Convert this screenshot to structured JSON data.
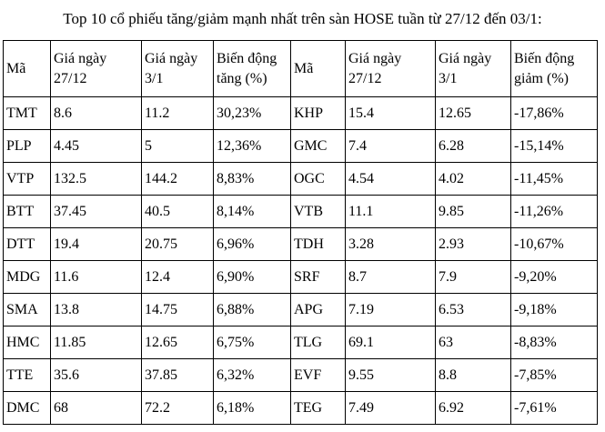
{
  "title": "Top 10 cổ phiếu tăng/giảm mạnh nhất trên sàn HOSE tuần từ 27/12 đến 03/1:",
  "table": {
    "headers": [
      "Mã",
      "Giá ngày 27/12",
      "Giá ngày 3/1",
      "Biến động tăng (%)",
      "Mã",
      "Giá ngày 27/12",
      "Giá ngày 3/1",
      "Biến động giảm (%)"
    ],
    "column_names": [
      "gainer-ticker",
      "gainer-price-2712",
      "gainer-price-0301",
      "gainer-change-pct",
      "loser-ticker",
      "loser-price-2712",
      "loser-price-0301",
      "loser-change-pct"
    ],
    "rows": [
      [
        "TMT",
        "8.6",
        "11.2",
        "30,23%",
        "KHP",
        "15.4",
        "12.65",
        "-17,86%"
      ],
      [
        "PLP",
        "4.45",
        "5",
        "12,36%",
        "GMC",
        "7.4",
        "6.28",
        "-15,14%"
      ],
      [
        "VTP",
        "132.5",
        "144.2",
        "8,83%",
        "OGC",
        "4.54",
        "4.02",
        "-11,45%"
      ],
      [
        "BTT",
        "37.45",
        "40.5",
        "8,14%",
        "VTB",
        "11.1",
        "9.85",
        "-11,26%"
      ],
      [
        "DTT",
        "19.4",
        "20.75",
        "6,96%",
        "TDH",
        "3.28",
        "2.93",
        "-10,67%"
      ],
      [
        "MDG",
        "11.6",
        "12.4",
        "6,90%",
        "SRF",
        "8.7",
        "7.9",
        "-9,20%"
      ],
      [
        "SMA",
        "13.8",
        "14.75",
        "6,88%",
        "APG",
        "7.19",
        "6.53",
        "-9,18%"
      ],
      [
        "HMC",
        "11.85",
        "12.65",
        "6,75%",
        "TLG",
        "69.1",
        "63",
        "-8,83%"
      ],
      [
        "TTE",
        "35.6",
        "37.85",
        "6,32%",
        "EVF",
        "9.55",
        "8.8",
        "-7,85%"
      ],
      [
        "DMC",
        "68",
        "72.2",
        "6,18%",
        "TEG",
        "7.49",
        "6.92",
        "-7,61%"
      ]
    ],
    "colors": {
      "border": "#000000",
      "text": "#000000",
      "background": "#ffffff"
    }
  }
}
